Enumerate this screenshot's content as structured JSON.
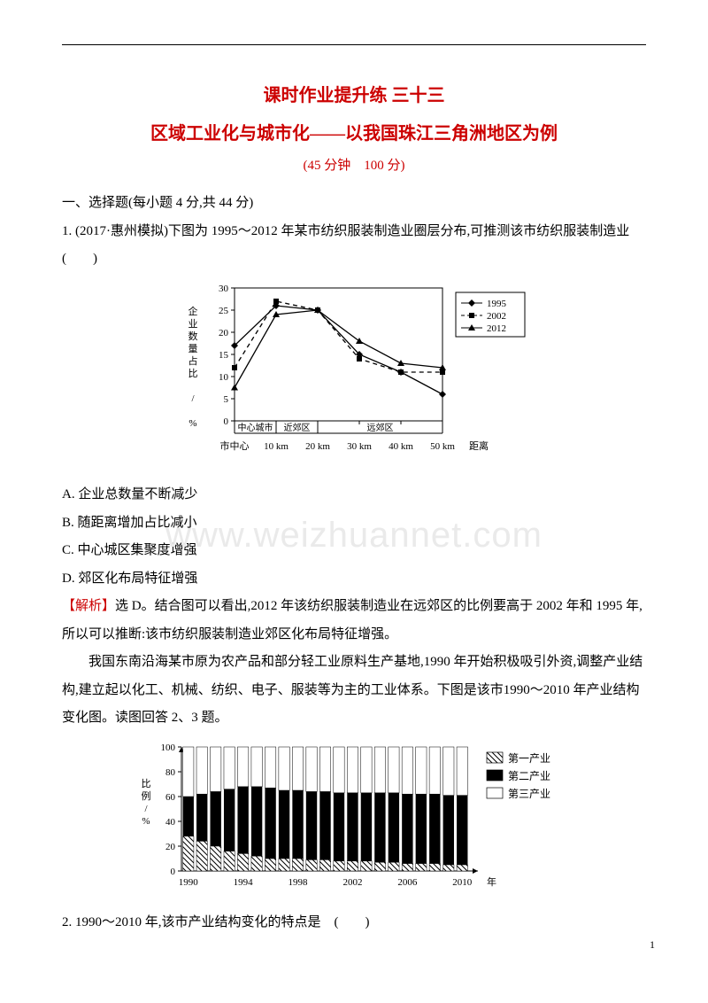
{
  "header": {
    "title1": "课时作业提升练 三十三",
    "title2": "区域工业化与城市化——以我国珠江三角洲地区为例",
    "timing": "(45 分钟　100 分)"
  },
  "section1": {
    "heading": "一、选择题(每小题 4 分,共 44 分)",
    "q1_stem": "1. (2017·惠州模拟)下图为 1995～2012 年某市纺织服装制造业圈层分布,可推测该市纺织服装制造业　(　　)",
    "q1_options": {
      "A": "A. 企业总数量不断减少",
      "B": "B. 随距离增加占比减小",
      "C": "C. 中心城区集聚度增强",
      "D": "D. 郊区化布局特征增强"
    },
    "q1_answer_label": "【解析】",
    "q1_answer_text": "选 D。结合图可以看出,2012 年该纺织服装制造业在远郊区的比例要高于 2002 年和 1995 年,所以可以推断:该市纺织服装制造业郊区化布局特征增强。",
    "passage2_p1": "我国东南沿海某市原为农产品和部分轻工业原料生产基地,1990 年开始积极吸引外资,调整产业结构,建立起以化工、机械、纺织、电子、服装等为主的工业体系。下图是该市1990～2010 年产业结构变化图。读图回答 2、3 题。",
    "q2_stem": "2. 1990～2010 年,该市产业结构变化的特点是　(　　)"
  },
  "watermark": "www.weizhuannet.com",
  "pagenum": "1",
  "chart1": {
    "type": "line",
    "legend": [
      "1995",
      "2002",
      "2012"
    ],
    "series_colors": [
      "#000000",
      "#000000",
      "#000000"
    ],
    "markers": [
      "diamond",
      "square",
      "triangle"
    ],
    "line_styles": [
      "solid",
      "dash",
      "solid"
    ],
    "xlabels": [
      "市中心",
      "10 km",
      "20 km",
      "30 km",
      "40 km",
      "50 km"
    ],
    "x_axis_right_label": "距离",
    "ylabel_vertical": "企业数量占比 / %",
    "ylim": [
      0,
      30
    ],
    "ytick_step": 5,
    "zone_labels": [
      "中心城市",
      "近郊区",
      "远郊区"
    ],
    "zone_boundaries_km": [
      0,
      10,
      20,
      60
    ],
    "data": {
      "1995": [
        17,
        26,
        25,
        15,
        11,
        6
      ],
      "2002": [
        12,
        27,
        25,
        14,
        11,
        11
      ],
      "2012": [
        7.5,
        24,
        25,
        18,
        13,
        12
      ]
    },
    "background_color": "#ffffff",
    "axis_color": "#000000"
  },
  "chart2": {
    "type": "stacked-bar",
    "legend": [
      "第一产业",
      "第二产业",
      "第三产业"
    ],
    "legend_fills": [
      "hatch",
      "solid-black",
      "white"
    ],
    "ylabel_vertical": "比例/%",
    "ylim": [
      0,
      100
    ],
    "ytick_step": 20,
    "x_years": [
      1990,
      1991,
      1992,
      1993,
      1994,
      1995,
      1996,
      1997,
      1998,
      1999,
      2000,
      2001,
      2002,
      2003,
      2004,
      2005,
      2006,
      2007,
      2008,
      2009,
      2010
    ],
    "x_tick_labels": [
      "1990",
      "1994",
      "1998",
      "2002",
      "2006",
      "2010"
    ],
    "x_right_label": "年",
    "data": {
      "primary": [
        28,
        24,
        20,
        16,
        14,
        12,
        10,
        10,
        10,
        9,
        9,
        8,
        8,
        8,
        7,
        7,
        6,
        6,
        6,
        5,
        5
      ],
      "secondary": [
        32,
        38,
        44,
        50,
        54,
        56,
        57,
        55,
        55,
        55,
        55,
        55,
        55,
        55,
        56,
        56,
        56,
        56,
        56,
        56,
        56
      ],
      "tertiary": [
        40,
        38,
        36,
        34,
        32,
        32,
        33,
        35,
        35,
        36,
        36,
        37,
        37,
        37,
        37,
        37,
        38,
        38,
        38,
        39,
        39
      ]
    },
    "background_color": "#ffffff",
    "axis_color": "#000000"
  }
}
